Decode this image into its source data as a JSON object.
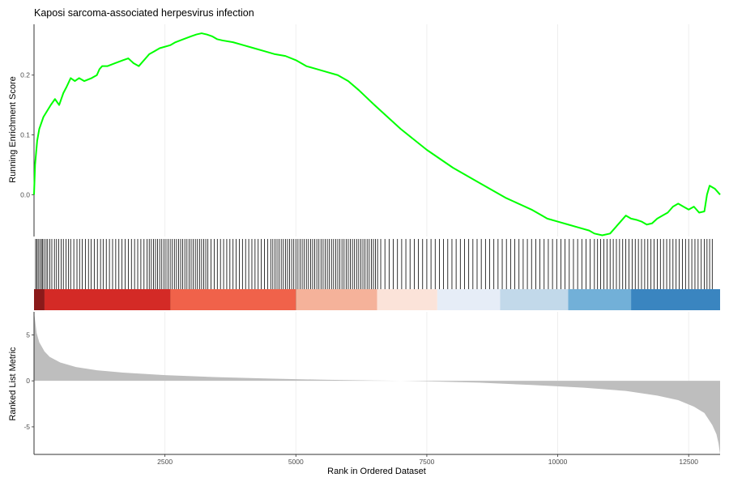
{
  "chart_data": {
    "type": "line",
    "title": "Kaposi sarcoma-associated herpesvirus infection",
    "xlabel": "Rank in Ordered Dataset",
    "xlim": [
      0,
      13100
    ],
    "x_ticks": [
      2500,
      5000,
      7500,
      10000,
      12500
    ],
    "grid": "vertical gridlines only",
    "panels": [
      {
        "name": "running-score",
        "ylabel": "Running Enrichment Score",
        "ylim": [
          -0.07,
          0.285
        ],
        "y_ticks": [
          0.0,
          0.1,
          0.2
        ],
        "y_tick_labels": [
          "0.0",
          "0.1",
          "0.2"
        ],
        "line_color": "#00FF00",
        "x": [
          0,
          20,
          60,
          100,
          180,
          250,
          320,
          400,
          480,
          560,
          620,
          700,
          780,
          860,
          960,
          1100,
          1200,
          1250,
          1300,
          1400,
          1550,
          1700,
          1800,
          1900,
          2000,
          2100,
          2200,
          2300,
          2400,
          2600,
          2700,
          2850,
          3000,
          3100,
          3200,
          3300,
          3400,
          3500,
          3600,
          3800,
          4000,
          4200,
          4400,
          4600,
          4800,
          5000,
          5200,
          5400,
          5600,
          5800,
          6000,
          6200,
          6500,
          7000,
          7500,
          8000,
          8500,
          9000,
          9500,
          9700,
          9800,
          10000,
          10200,
          10400,
          10600,
          10700,
          10850,
          11000,
          11100,
          11200,
          11300,
          11400,
          11500,
          11600,
          11700,
          11800,
          11900,
          12000,
          12100,
          12200,
          12300,
          12400,
          12500,
          12600,
          12700,
          12800,
          12850,
          12900,
          13000,
          13100
        ],
        "y": [
          0.0,
          0.05,
          0.09,
          0.11,
          0.13,
          0.14,
          0.15,
          0.16,
          0.15,
          0.17,
          0.18,
          0.195,
          0.19,
          0.195,
          0.19,
          0.195,
          0.2,
          0.21,
          0.215,
          0.215,
          0.22,
          0.225,
          0.228,
          0.22,
          0.215,
          0.225,
          0.235,
          0.24,
          0.245,
          0.25,
          0.255,
          0.26,
          0.265,
          0.268,
          0.27,
          0.268,
          0.265,
          0.26,
          0.258,
          0.255,
          0.25,
          0.245,
          0.24,
          0.235,
          0.232,
          0.225,
          0.215,
          0.21,
          0.205,
          0.2,
          0.19,
          0.175,
          0.15,
          0.11,
          0.075,
          0.045,
          0.02,
          -0.005,
          -0.025,
          -0.035,
          -0.04,
          -0.045,
          -0.05,
          -0.055,
          -0.06,
          -0.065,
          -0.068,
          -0.065,
          -0.055,
          -0.045,
          -0.035,
          -0.04,
          -0.042,
          -0.045,
          -0.05,
          -0.048,
          -0.04,
          -0.035,
          -0.03,
          -0.02,
          -0.015,
          -0.02,
          -0.025,
          -0.02,
          -0.03,
          -0.028,
          0.0,
          0.015,
          0.01,
          0.0
        ]
      },
      {
        "name": "gene-hits",
        "hit_color": "#000000",
        "hits": [
          30,
          55,
          80,
          110,
          140,
          160,
          190,
          230,
          260,
          300,
          340,
          390,
          430,
          470,
          520,
          560,
          610,
          660,
          700,
          760,
          820,
          870,
          920,
          980,
          1040,
          1090,
          1150,
          1210,
          1270,
          1320,
          1380,
          1440,
          1500,
          1560,
          1620,
          1680,
          1740,
          1800,
          1860,
          1920,
          1980,
          2040,
          2100,
          2160,
          2200,
          2240,
          2280,
          2320,
          2360,
          2400,
          2440,
          2480,
          2520,
          2560,
          2600,
          2640,
          2680,
          2720,
          2760,
          2800,
          2840,
          2880,
          2920,
          2960,
          3000,
          3040,
          3080,
          3120,
          3160,
          3200,
          3240,
          3280,
          3320,
          3380,
          3440,
          3500,
          3560,
          3620,
          3680,
          3740,
          3800,
          3860,
          3920,
          3980,
          4040,
          4100,
          4160,
          4220,
          4280,
          4340,
          4400,
          4460,
          4520,
          4560,
          4600,
          4640,
          4680,
          4720,
          4760,
          4800,
          4840,
          4880,
          4920,
          4960,
          5000,
          5040,
          5080,
          5120,
          5160,
          5200,
          5240,
          5280,
          5320,
          5360,
          5400,
          5440,
          5480,
          5520,
          5560,
          5600,
          5640,
          5680,
          5720,
          5760,
          5800,
          5840,
          5880,
          5920,
          5960,
          6000,
          6040,
          6080,
          6120,
          6160,
          6200,
          6240,
          6280,
          6320,
          6360,
          6400,
          6440,
          6480,
          6520,
          6560,
          6620,
          6700,
          6780,
          6860,
          6940,
          7020,
          7100,
          7180,
          7260,
          7340,
          7420,
          7500,
          7580,
          7660,
          7740,
          7820,
          7900,
          7980,
          8060,
          8140,
          8220,
          8300,
          8380,
          8460,
          8540,
          8620,
          8700,
          8780,
          8860,
          8940,
          9020,
          9100,
          9180,
          9260,
          9340,
          9420,
          9500,
          9580,
          9660,
          9740,
          9820,
          9900,
          9980,
          10060,
          10140,
          10220,
          10300,
          10380,
          10460,
          10540,
          10620,
          10700,
          10760,
          10820,
          10880,
          10940,
          11000,
          11060,
          11120,
          11180,
          11240,
          11300,
          11360,
          11420,
          11480,
          11540,
          11600,
          11660,
          11720,
          11780,
          11840,
          11900,
          11960,
          12020,
          12080,
          12140,
          12200,
          12260,
          12320,
          12380,
          12440,
          12500,
          12560,
          12620,
          12680,
          12740,
          12800,
          12850,
          12900,
          12950
        ],
        "color_bands": [
          {
            "from": 0,
            "to": 200,
            "color": "#8B1A1A"
          },
          {
            "from": 200,
            "to": 2600,
            "color": "#D42A26"
          },
          {
            "from": 2600,
            "to": 5000,
            "color": "#F0624A"
          },
          {
            "from": 5000,
            "to": 6550,
            "color": "#F5B29A"
          },
          {
            "from": 6550,
            "to": 7700,
            "color": "#FBE3D9"
          },
          {
            "from": 7700,
            "to": 8900,
            "color": "#E6EDF7"
          },
          {
            "from": 8900,
            "to": 10200,
            "color": "#C2D9EA"
          },
          {
            "from": 10200,
            "to": 11400,
            "color": "#72B0D8"
          },
          {
            "from": 11400,
            "to": 13100,
            "color": "#3A85C0"
          }
        ]
      },
      {
        "name": "ranked-metric",
        "ylabel": "Ranked List Metric",
        "type": "area",
        "ylim": [
          -8,
          7.5
        ],
        "y_ticks": [
          5,
          0,
          -5
        ],
        "y_tick_labels": [
          "5",
          "0",
          "-5"
        ],
        "fill_color": "#BEBEBE",
        "x": [
          0,
          50,
          100,
          200,
          300,
          500,
          800,
          1200,
          1700,
          2500,
          3500,
          4500,
          5500,
          6500,
          7000,
          7500,
          8500,
          9500,
          10500,
          11300,
          11900,
          12300,
          12600,
          12800,
          12950,
          13030,
          13070,
          13100
        ],
        "y": [
          7.5,
          5.2,
          4.2,
          3.2,
          2.6,
          2.0,
          1.5,
          1.15,
          0.9,
          0.62,
          0.4,
          0.25,
          0.12,
          0.04,
          0.0,
          -0.05,
          -0.2,
          -0.45,
          -0.75,
          -1.1,
          -1.6,
          -2.1,
          -2.8,
          -3.5,
          -4.8,
          -5.8,
          -6.8,
          -8.0
        ]
      }
    ]
  }
}
